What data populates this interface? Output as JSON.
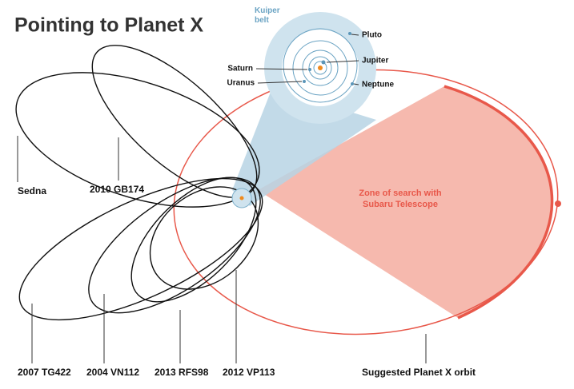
{
  "title": "Pointing to Planet X",
  "inset": {
    "kuiper_belt": "Kuiper belt",
    "pluto": "Pluto",
    "jupiter": "Jupiter",
    "saturn": "Saturn",
    "uranus": "Uranus",
    "neptune": "Neptune"
  },
  "objects": [
    "Sedna",
    "2010 GB174",
    "2007 TG422",
    "2004 VN112",
    "2013 RFS98",
    "2012 VP113"
  ],
  "planet_x_orbit": "Suggested Planet X orbit",
  "search_zone": "Zone of search with Subaru Telescope"
}
